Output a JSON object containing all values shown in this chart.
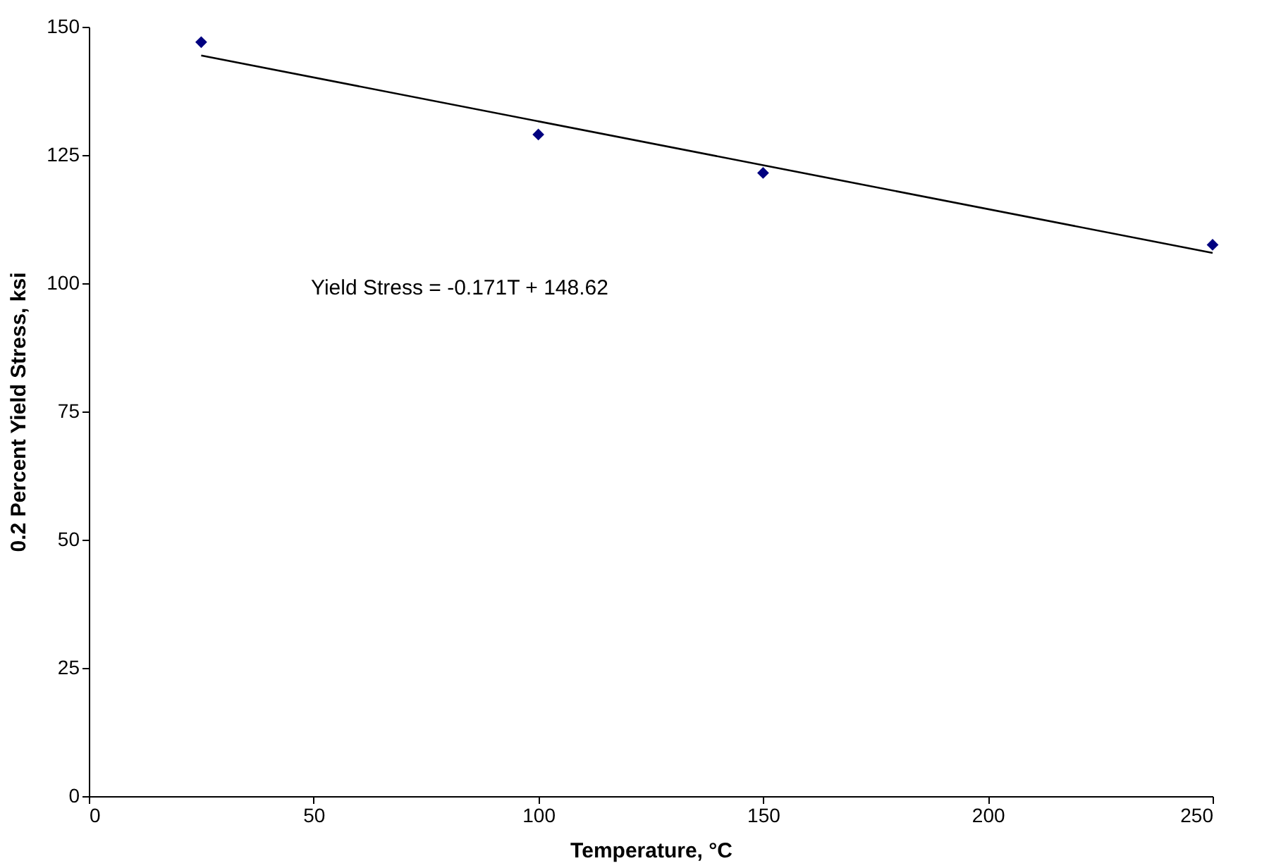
{
  "chart_data": {
    "type": "scatter",
    "xlabel": "Temperature, °C",
    "ylabel": "0.2 Percent Yield Stress, ksi",
    "series": [
      {
        "color": "#000080",
        "x": [
          25,
          100,
          150,
          250
        ],
        "values": [
          147,
          129,
          121.5,
          107.5
        ],
        "marker": "diamond"
      },
      {
        "type": "line",
        "color": "#000000",
        "x": [
          25,
          250
        ],
        "values": [
          144.4,
          105.9
        ],
        "marker": "none",
        "line_style": "solid"
      }
    ],
    "xlim": [
      0,
      250
    ],
    "xticks": [
      0,
      50,
      100,
      150,
      200,
      250
    ],
    "ylim": [
      0,
      150
    ],
    "yticks": [
      0,
      25,
      50,
      75,
      100,
      125,
      150
    ],
    "grid": false,
    "annotations": [
      "Yield Stress = -0.171T + 148.62"
    ]
  }
}
